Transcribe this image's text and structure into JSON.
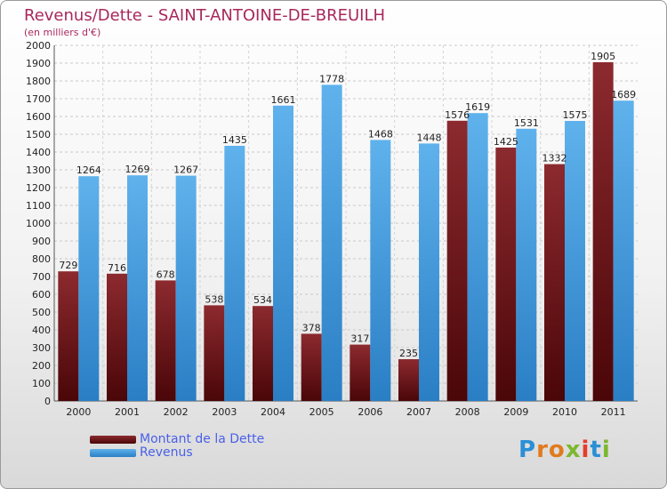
{
  "chart_data": {
    "type": "bar",
    "title": "Revenus/Dette - SAINT-ANTOINE-DE-BREUILH",
    "subtitle": "(en milliers d'€)",
    "categories": [
      "2000",
      "2001",
      "2002",
      "2003",
      "2004",
      "2005",
      "2006",
      "2007",
      "2008",
      "2009",
      "2010",
      "2011"
    ],
    "series": [
      {
        "name": "Montant de la Dette",
        "color": "#6b1a1f",
        "values": [
          729,
          716,
          678,
          538,
          534,
          378,
          317,
          235,
          1576,
          1425,
          1332,
          1905
        ]
      },
      {
        "name": "Revenus",
        "color": "#4a9de0",
        "values": [
          1264,
          1269,
          1267,
          1435,
          1661,
          1778,
          1468,
          1448,
          1619,
          1531,
          1575,
          1689
        ]
      }
    ],
    "ylim": [
      0,
      2000
    ],
    "ytick_step": 100,
    "grid": true,
    "legend": "bottom-left"
  },
  "logo": {
    "text": "Proxiti"
  }
}
